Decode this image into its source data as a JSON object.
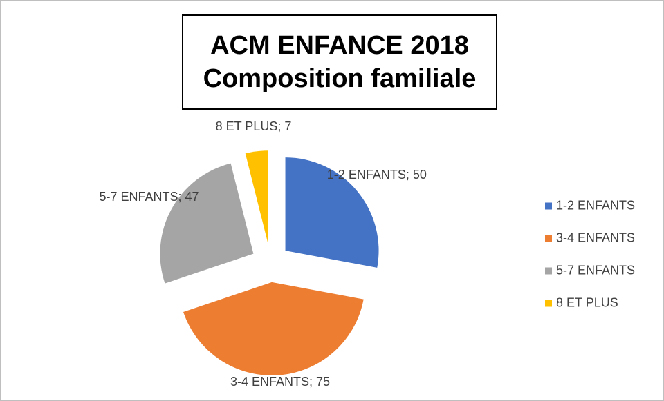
{
  "chart_data": {
    "type": "pie",
    "title": "ACM ENFANCE 2018",
    "subtitle": "Composition familiale",
    "categories": [
      "1-2 ENFANTS",
      "3-4 ENFANTS",
      "5-7 ENFANTS",
      "8 ET PLUS"
    ],
    "values": [
      50,
      75,
      47,
      7
    ],
    "value_labels": [
      "1-2 ENFANTS; 50",
      "3-4 ENFANTS; 75",
      "5-7 ENFANTS; 47",
      "8 ET PLUS; 7"
    ],
    "colors": [
      "#4472c4",
      "#ed7d31",
      "#a5a5a5",
      "#ffc000"
    ],
    "legend": "right"
  }
}
